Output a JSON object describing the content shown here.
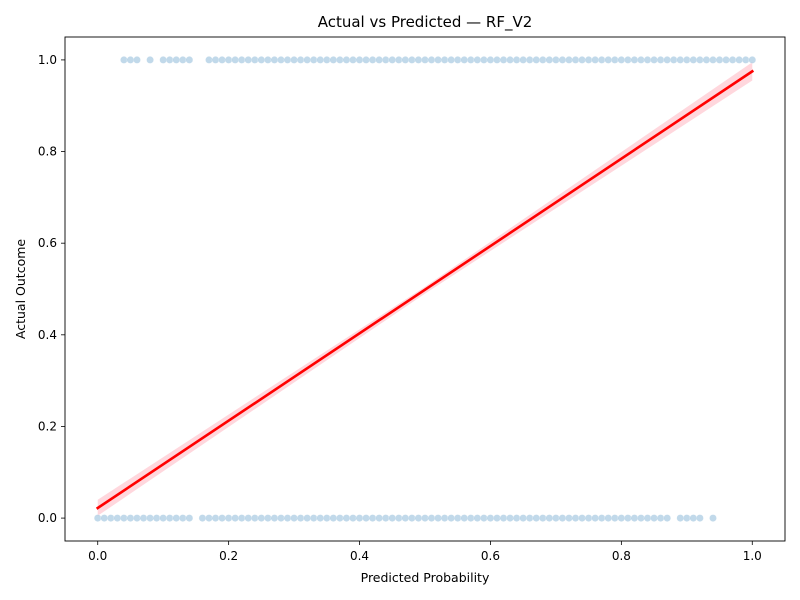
{
  "chart_data": {
    "type": "scatter",
    "title": "Actual vs Predicted — RF_V2",
    "xlabel": "Predicted Probability",
    "ylabel": "Actual Outcome",
    "xlim": [
      -0.05,
      1.05
    ],
    "ylim": [
      -0.05,
      1.05
    ],
    "x_ticks": [
      "0.0",
      "0.2",
      "0.4",
      "0.6",
      "0.8",
      "1.0"
    ],
    "y_ticks": [
      "0.0",
      "0.2",
      "0.4",
      "0.6",
      "0.8",
      "1.0"
    ],
    "grid": false,
    "colors": {
      "points": "#1f77b4",
      "fit_line": "#ff0000",
      "confidence_band": "#ffb6c1"
    },
    "points": {
      "y1_x": [
        0.04,
        0.05,
        0.06,
        0.08,
        0.1,
        0.11,
        0.12,
        0.13,
        0.14,
        0.17,
        0.18,
        0.19,
        0.2,
        0.21,
        0.22,
        0.23,
        0.24,
        0.25,
        0.26,
        0.27,
        0.28,
        0.29,
        0.3,
        0.31,
        0.32,
        0.33,
        0.34,
        0.35,
        0.36,
        0.37,
        0.38,
        0.39,
        0.4,
        0.41,
        0.42,
        0.43,
        0.44,
        0.45,
        0.46,
        0.47,
        0.48,
        0.49,
        0.5,
        0.51,
        0.52,
        0.53,
        0.54,
        0.55,
        0.56,
        0.57,
        0.58,
        0.59,
        0.6,
        0.61,
        0.62,
        0.63,
        0.64,
        0.65,
        0.66,
        0.67,
        0.68,
        0.69,
        0.7,
        0.71,
        0.72,
        0.73,
        0.74,
        0.75,
        0.76,
        0.77,
        0.78,
        0.79,
        0.8,
        0.81,
        0.82,
        0.83,
        0.84,
        0.85,
        0.86,
        0.87,
        0.88,
        0.89,
        0.9,
        0.91,
        0.92,
        0.93,
        0.94,
        0.95,
        0.96,
        0.97,
        0.98,
        0.99,
        1.0
      ],
      "y0_x": [
        0.0,
        0.01,
        0.02,
        0.03,
        0.04,
        0.05,
        0.06,
        0.07,
        0.08,
        0.09,
        0.1,
        0.11,
        0.12,
        0.13,
        0.14,
        0.16,
        0.17,
        0.18,
        0.19,
        0.2,
        0.21,
        0.22,
        0.23,
        0.24,
        0.25,
        0.26,
        0.27,
        0.28,
        0.29,
        0.3,
        0.31,
        0.32,
        0.33,
        0.34,
        0.35,
        0.36,
        0.37,
        0.38,
        0.39,
        0.4,
        0.41,
        0.42,
        0.43,
        0.44,
        0.45,
        0.46,
        0.47,
        0.48,
        0.49,
        0.5,
        0.51,
        0.52,
        0.53,
        0.54,
        0.55,
        0.56,
        0.57,
        0.58,
        0.59,
        0.6,
        0.61,
        0.62,
        0.63,
        0.64,
        0.65,
        0.66,
        0.67,
        0.68,
        0.69,
        0.7,
        0.71,
        0.72,
        0.73,
        0.74,
        0.75,
        0.76,
        0.77,
        0.78,
        0.79,
        0.8,
        0.81,
        0.82,
        0.83,
        0.84,
        0.85,
        0.86,
        0.87,
        0.89,
        0.9,
        0.91,
        0.92,
        0.94
      ]
    },
    "fit_line": {
      "x": [
        0.0,
        1.0
      ],
      "y": [
        0.022,
        0.975
      ]
    },
    "confidence_band": {
      "x": [
        0.0,
        0.5,
        1.0
      ],
      "lower": [
        0.005,
        0.49,
        0.955
      ],
      "upper": [
        0.04,
        0.505,
        0.995
      ]
    }
  }
}
